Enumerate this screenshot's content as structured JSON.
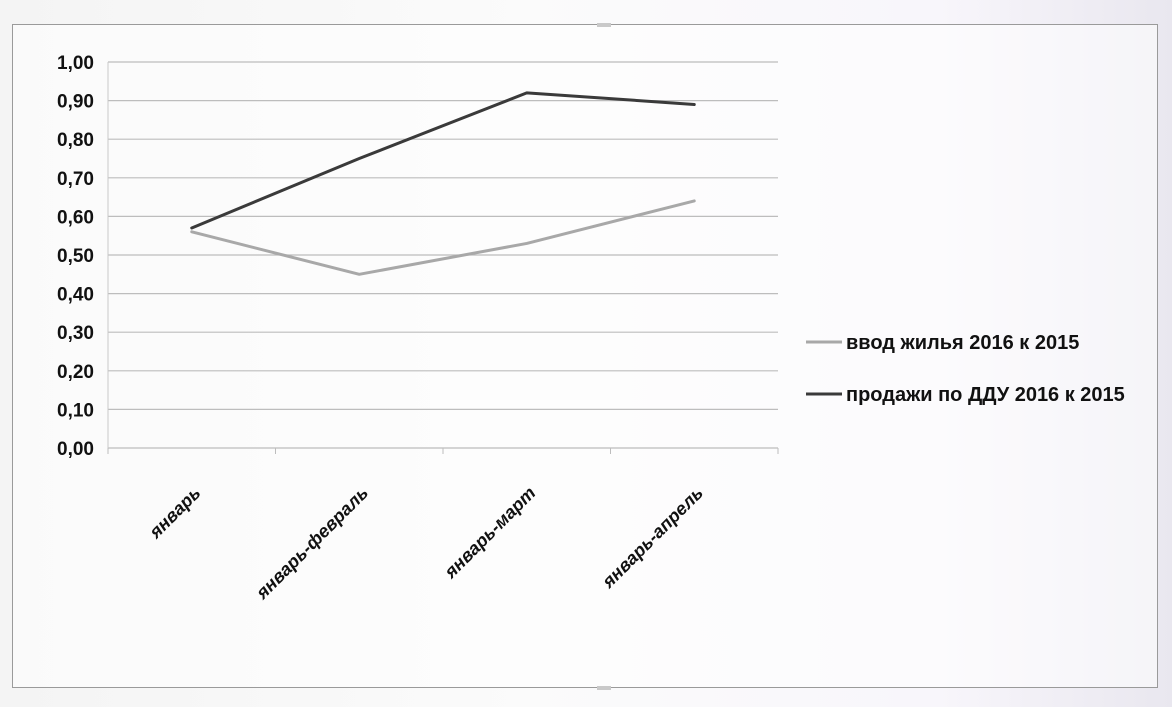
{
  "chart_data": {
    "type": "line",
    "categories": [
      "январь",
      "январь-февраль",
      "январь-март",
      "январь-апрель"
    ],
    "ylim": [
      0,
      1.0
    ],
    "yticks": [
      "0,00",
      "0,10",
      "0,20",
      "0,30",
      "0,40",
      "0,50",
      "0,60",
      "0,70",
      "0,80",
      "0,90",
      "1,00"
    ],
    "grid": true,
    "legend_position": "right",
    "series": [
      {
        "name": "ввод жилья 2016 к 2015",
        "values": [
          0.56,
          0.45,
          0.53,
          0.64
        ],
        "color": "#a8a8a8"
      },
      {
        "name": "продажи по ДДУ  2016 к 2015",
        "values": [
          0.57,
          0.75,
          0.92,
          0.89
        ],
        "color": "#3a3a3a"
      }
    ]
  }
}
